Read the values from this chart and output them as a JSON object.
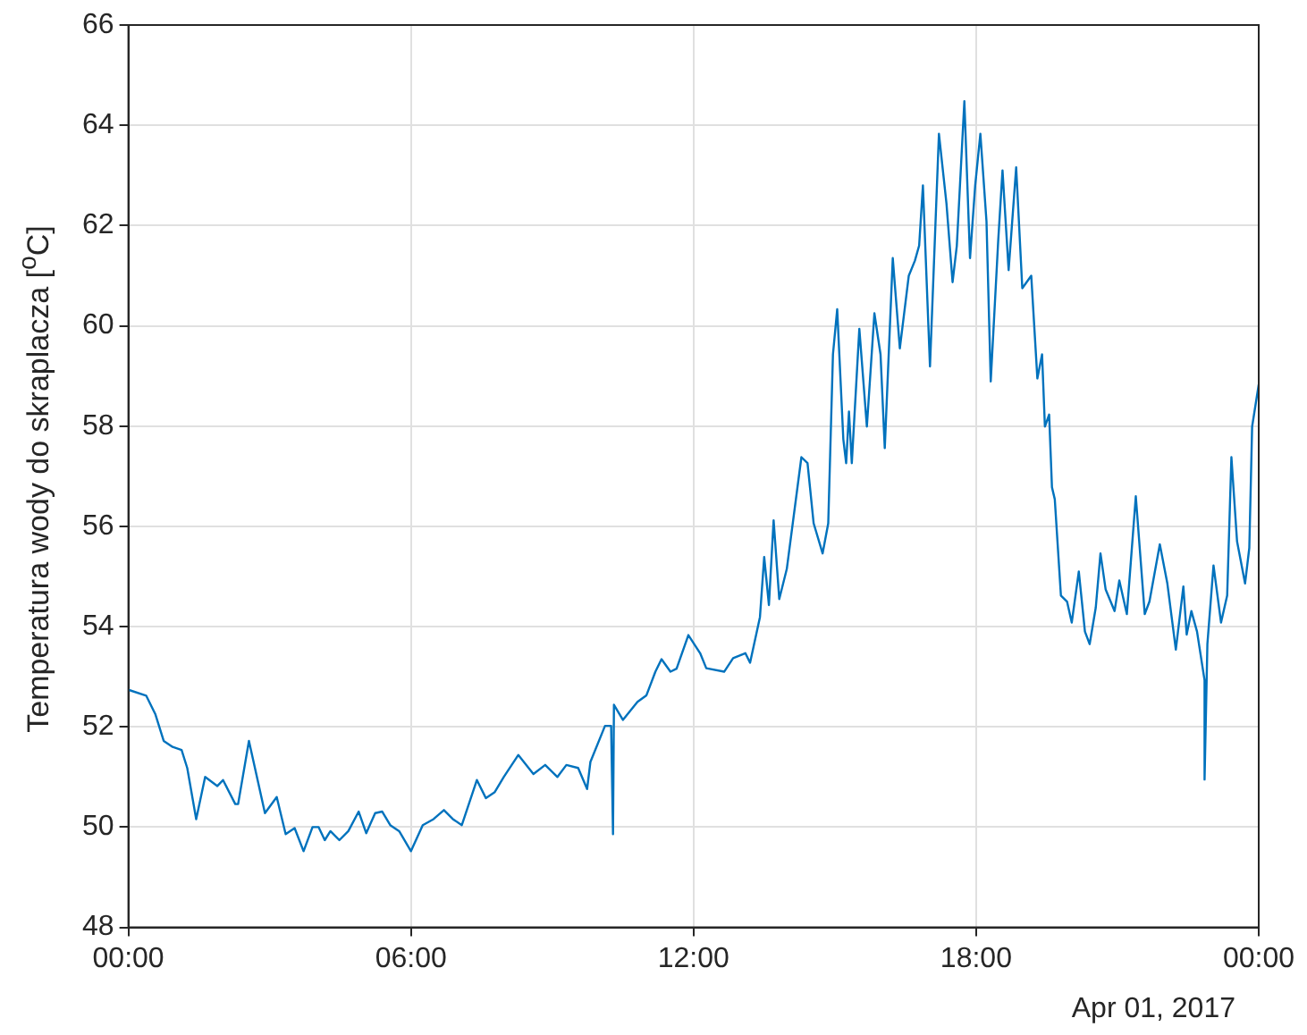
{
  "chart_data": {
    "type": "line",
    "ylabel": "Temperatura wody do skraplacza [$^{o}$C]",
    "annotations": [
      "Apr 01, 2017"
    ],
    "xlim": [
      0,
      24
    ],
    "xticks": [
      {
        "value": 0,
        "label": "00:00"
      },
      {
        "value": 6,
        "label": "06:00"
      },
      {
        "value": 12,
        "label": "12:00"
      },
      {
        "value": 18,
        "label": "18:00"
      },
      {
        "value": 24,
        "label": "00:00"
      }
    ],
    "ylim": [
      48,
      66
    ],
    "yticks": [
      48,
      50,
      52,
      54,
      56,
      58,
      60,
      62,
      64,
      66
    ],
    "grid": true,
    "marker": "none",
    "line_style": "solid",
    "series": [
      {
        "color": "#0072bd",
        "x": [
          0,
          0.38,
          0.57,
          0.75,
          0.94,
          1.13,
          1.25,
          1.44,
          1.63,
          1.89,
          2.01,
          2.27,
          2.33,
          2.56,
          2.9,
          3.15,
          3.34,
          3.53,
          3.72,
          3.91,
          4.04,
          4.17,
          4.29,
          4.48,
          4.67,
          4.89,
          5.05,
          5.24,
          5.39,
          5.56,
          5.75,
          6.0,
          6.25,
          6.48,
          6.7,
          6.89,
          7.08,
          7.4,
          7.59,
          7.78,
          7.97,
          8.28,
          8.6,
          8.85,
          9.11,
          9.3,
          9.55,
          9.74,
          9.81,
          10.12,
          10.25,
          10.29,
          10.31,
          10.5,
          10.81,
          11.0,
          11.19,
          11.32,
          11.51,
          11.64,
          11.89,
          12.14,
          12.27,
          12.65,
          12.84,
          13.1,
          13.2,
          13.41,
          13.5,
          13.6,
          13.7,
          13.82,
          13.98,
          14.29,
          14.42,
          14.55,
          14.74,
          14.86,
          14.96,
          15.05,
          15.18,
          15.24,
          15.3,
          15.36,
          15.52,
          15.68,
          15.84,
          15.97,
          16.06,
          16.23,
          16.38,
          16.57,
          16.7,
          16.79,
          16.87,
          17.02,
          17.21,
          17.37,
          17.5,
          17.59,
          17.75,
          17.87,
          17.98,
          18.09,
          18.22,
          18.31,
          18.47,
          18.56,
          18.69,
          18.85,
          18.98,
          19.17,
          19.3,
          19.4,
          19.46,
          19.55,
          19.61,
          19.67,
          19.8,
          19.93,
          20.03,
          20.18,
          20.31,
          20.41,
          20.54,
          20.64,
          20.75,
          20.94,
          21.04,
          21.2,
          21.39,
          21.58,
          21.68,
          21.9,
          22.06,
          22.24,
          22.4,
          22.47,
          22.57,
          22.69,
          22.85,
          22.85,
          22.91,
          23.04,
          23.2,
          23.33,
          23.42,
          23.54,
          23.71,
          23.8,
          23.86,
          24
        ],
        "values": [
          52.74,
          52.62,
          52.26,
          51.72,
          51.6,
          51.54,
          51.18,
          50.16,
          51.0,
          50.82,
          50.94,
          50.46,
          50.46,
          51.72,
          50.28,
          50.6,
          49.86,
          49.98,
          49.52,
          50.0,
          50.0,
          49.74,
          49.92,
          49.74,
          49.92,
          50.31,
          49.88,
          50.28,
          50.31,
          50.04,
          49.92,
          49.52,
          50.04,
          50.16,
          50.34,
          50.16,
          50.04,
          50.94,
          50.58,
          50.7,
          51.0,
          51.44,
          51.06,
          51.24,
          51.0,
          51.24,
          51.18,
          50.76,
          51.3,
          52.02,
          52.02,
          49.86,
          52.44,
          52.14,
          52.5,
          52.63,
          53.1,
          53.35,
          53.1,
          53.16,
          53.83,
          53.47,
          53.17,
          53.1,
          53.37,
          53.47,
          53.28,
          54.19,
          55.39,
          54.43,
          56.12,
          54.55,
          55.15,
          57.38,
          57.26,
          56.06,
          55.46,
          56.06,
          59.43,
          60.33,
          57.74,
          57.26,
          58.29,
          57.26,
          59.94,
          57.99,
          60.25,
          59.43,
          57.56,
          61.35,
          59.55,
          61.0,
          61.3,
          61.6,
          62.8,
          59.19,
          63.83,
          62.44,
          60.87,
          61.6,
          64.48,
          61.35,
          62.8,
          63.83,
          62.08,
          58.89,
          61.72,
          63.1,
          61.11,
          63.16,
          60.75,
          61.0,
          58.95,
          59.43,
          57.99,
          58.23,
          56.78,
          56.54,
          54.62,
          54.5,
          54.08,
          55.1,
          53.9,
          53.65,
          54.38,
          55.46,
          54.74,
          54.31,
          54.92,
          54.25,
          56.6,
          54.25,
          54.5,
          55.64,
          54.86,
          53.54,
          54.8,
          53.84,
          54.31,
          53.9,
          52.93,
          50.95,
          53.65,
          55.22,
          54.08,
          54.62,
          57.38,
          55.7,
          54.86,
          55.57,
          57.99,
          58.83
        ]
      }
    ]
  }
}
